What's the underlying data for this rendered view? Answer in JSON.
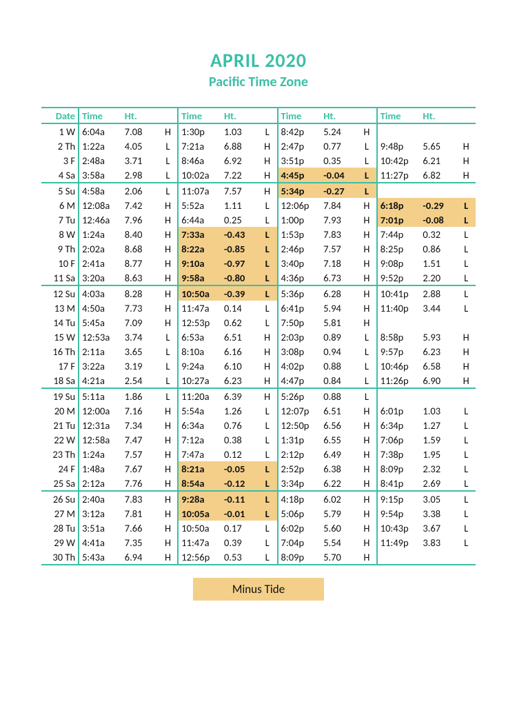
{
  "colors": {
    "accent": "#3bbfa5",
    "highlight": "#f3cf8a",
    "text": "#111111",
    "background": "#ffffff"
  },
  "title": "APRIL 2020",
  "subtitle": "Pacific Time Zone",
  "legend_label": "Minus Tide",
  "headers": {
    "date": "Date",
    "time": "Time",
    "ht": "Ht."
  },
  "week_breaks_after": [
    4,
    11,
    18,
    25
  ],
  "rows": [
    {
      "d": 1,
      "w": "W",
      "t": [
        [
          "6:04a",
          "7.08",
          "H"
        ],
        [
          "1:30p",
          "1.03",
          "L"
        ],
        [
          "8:42p",
          "5.24",
          "H"
        ],
        [
          "",
          "",
          ""
        ]
      ]
    },
    {
      "d": 2,
      "w": "Th",
      "t": [
        [
          "1:22a",
          "4.05",
          "L"
        ],
        [
          "7:21a",
          "6.88",
          "H"
        ],
        [
          "2:47p",
          "0.77",
          "L"
        ],
        [
          "9:48p",
          "5.65",
          "H"
        ]
      ]
    },
    {
      "d": 3,
      "w": "F",
      "t": [
        [
          "2:48a",
          "3.71",
          "L"
        ],
        [
          "8:46a",
          "6.92",
          "H"
        ],
        [
          "3:51p",
          "0.35",
          "L"
        ],
        [
          "10:42p",
          "6.21",
          "H"
        ]
      ]
    },
    {
      "d": 4,
      "w": "Sa",
      "t": [
        [
          "3:58a",
          "2.98",
          "L"
        ],
        [
          "10:02a",
          "7.22",
          "H"
        ],
        [
          "4:45p",
          "-0.04",
          "L",
          true
        ],
        [
          "11:27p",
          "6.82",
          "H"
        ]
      ]
    },
    {
      "d": 5,
      "w": "Su",
      "t": [
        [
          "4:58a",
          "2.06",
          "L"
        ],
        [
          "11:07a",
          "7.57",
          "H"
        ],
        [
          "5:34p",
          "-0.27",
          "L",
          true
        ],
        [
          "",
          "",
          ""
        ]
      ]
    },
    {
      "d": 6,
      "w": "M",
      "t": [
        [
          "12:08a",
          "7.42",
          "H"
        ],
        [
          "5:52a",
          "1.11",
          "L"
        ],
        [
          "12:06p",
          "7.84",
          "H"
        ],
        [
          "6:18p",
          "-0.29",
          "L",
          true
        ]
      ]
    },
    {
      "d": 7,
      "w": "Tu",
      "t": [
        [
          "12:46a",
          "7.96",
          "H"
        ],
        [
          "6:44a",
          "0.25",
          "L"
        ],
        [
          "1:00p",
          "7.93",
          "H"
        ],
        [
          "7:01p",
          "-0.08",
          "L",
          true
        ]
      ]
    },
    {
      "d": 8,
      "w": "W",
      "t": [
        [
          "1:24a",
          "8.40",
          "H"
        ],
        [
          "7:33a",
          "-0.43",
          "L",
          true
        ],
        [
          "1:53p",
          "7.83",
          "H"
        ],
        [
          "7:44p",
          "0.32",
          "L"
        ]
      ]
    },
    {
      "d": 9,
      "w": "Th",
      "t": [
        [
          "2:02a",
          "8.68",
          "H"
        ],
        [
          "8:22a",
          "-0.85",
          "L",
          true
        ],
        [
          "2:46p",
          "7.57",
          "H"
        ],
        [
          "8:25p",
          "0.86",
          "L"
        ]
      ]
    },
    {
      "d": 10,
      "w": "F",
      "t": [
        [
          "2:41a",
          "8.77",
          "H"
        ],
        [
          "9:10a",
          "-0.97",
          "L",
          true
        ],
        [
          "3:40p",
          "7.18",
          "H"
        ],
        [
          "9:08p",
          "1.51",
          "L"
        ]
      ]
    },
    {
      "d": 11,
      "w": "Sa",
      "t": [
        [
          "3:20a",
          "8.63",
          "H"
        ],
        [
          "9:58a",
          "-0.80",
          "L",
          true
        ],
        [
          "4:36p",
          "6.73",
          "H"
        ],
        [
          "9:52p",
          "2.20",
          "L"
        ]
      ]
    },
    {
      "d": 12,
      "w": "Su",
      "t": [
        [
          "4:03a",
          "8.28",
          "H"
        ],
        [
          "10:50a",
          "-0.39",
          "L",
          true
        ],
        [
          "5:36p",
          "6.28",
          "H"
        ],
        [
          "10:41p",
          "2.88",
          "L"
        ]
      ]
    },
    {
      "d": 13,
      "w": "M",
      "t": [
        [
          "4:50a",
          "7.73",
          "H"
        ],
        [
          "11:47a",
          "0.14",
          "L"
        ],
        [
          "6:41p",
          "5.94",
          "H"
        ],
        [
          "11:40p",
          "3.44",
          "L"
        ]
      ]
    },
    {
      "d": 14,
      "w": "Tu",
      "t": [
        [
          "5:45a",
          "7.09",
          "H"
        ],
        [
          "12:53p",
          "0.62",
          "L"
        ],
        [
          "7:50p",
          "5.81",
          "H"
        ],
        [
          "",
          "",
          ""
        ]
      ]
    },
    {
      "d": 15,
      "w": "W",
      "t": [
        [
          "12:53a",
          "3.74",
          "L"
        ],
        [
          "6:53a",
          "6.51",
          "H"
        ],
        [
          "2:03p",
          "0.89",
          "L"
        ],
        [
          "8:58p",
          "5.93",
          "H"
        ]
      ]
    },
    {
      "d": 16,
      "w": "Th",
      "t": [
        [
          "2:11a",
          "3.65",
          "L"
        ],
        [
          "8:10a",
          "6.16",
          "H"
        ],
        [
          "3:08p",
          "0.94",
          "L"
        ],
        [
          "9:57p",
          "6.23",
          "H"
        ]
      ]
    },
    {
      "d": 17,
      "w": "F",
      "t": [
        [
          "3:22a",
          "3.19",
          "L"
        ],
        [
          "9:24a",
          "6.10",
          "H"
        ],
        [
          "4:02p",
          "0.88",
          "L"
        ],
        [
          "10:46p",
          "6.58",
          "H"
        ]
      ]
    },
    {
      "d": 18,
      "w": "Sa",
      "t": [
        [
          "4:21a",
          "2.54",
          "L"
        ],
        [
          "10:27a",
          "6.23",
          "H"
        ],
        [
          "4:47p",
          "0.84",
          "L"
        ],
        [
          "11:26p",
          "6.90",
          "H"
        ]
      ]
    },
    {
      "d": 19,
      "w": "Su",
      "t": [
        [
          "5:11a",
          "1.86",
          "L"
        ],
        [
          "11:20a",
          "6.39",
          "H"
        ],
        [
          "5:26p",
          "0.88",
          "L"
        ],
        [
          "",
          "",
          ""
        ]
      ]
    },
    {
      "d": 20,
      "w": "M",
      "t": [
        [
          "12:00a",
          "7.16",
          "H"
        ],
        [
          "5:54a",
          "1.26",
          "L"
        ],
        [
          "12:07p",
          "6.51",
          "H"
        ],
        [
          "6:01p",
          "1.03",
          "L"
        ]
      ]
    },
    {
      "d": 21,
      "w": "Tu",
      "t": [
        [
          "12:31a",
          "7.34",
          "H"
        ],
        [
          "6:34a",
          "0.76",
          "L"
        ],
        [
          "12:50p",
          "6.56",
          "H"
        ],
        [
          "6:34p",
          "1.27",
          "L"
        ]
      ]
    },
    {
      "d": 22,
      "w": "W",
      "t": [
        [
          "12:58a",
          "7.47",
          "H"
        ],
        [
          "7:12a",
          "0.38",
          "L"
        ],
        [
          "1:31p",
          "6.55",
          "H"
        ],
        [
          "7:06p",
          "1.59",
          "L"
        ]
      ]
    },
    {
      "d": 23,
      "w": "Th",
      "t": [
        [
          "1:24a",
          "7.57",
          "H"
        ],
        [
          "7:47a",
          "0.12",
          "L"
        ],
        [
          "2:12p",
          "6.49",
          "H"
        ],
        [
          "7:38p",
          "1.95",
          "L"
        ]
      ]
    },
    {
      "d": 24,
      "w": "F",
      "t": [
        [
          "1:48a",
          "7.67",
          "H"
        ],
        [
          "8:21a",
          "-0.05",
          "L",
          true
        ],
        [
          "2:52p",
          "6.38",
          "H"
        ],
        [
          "8:09p",
          "2.32",
          "L"
        ]
      ]
    },
    {
      "d": 25,
      "w": "Sa",
      "t": [
        [
          "2:12a",
          "7.76",
          "H"
        ],
        [
          "8:54a",
          "-0.12",
          "L",
          true
        ],
        [
          "3:34p",
          "6.22",
          "H"
        ],
        [
          "8:41p",
          "2.69",
          "L"
        ]
      ]
    },
    {
      "d": 26,
      "w": "Su",
      "t": [
        [
          "2:40a",
          "7.83",
          "H"
        ],
        [
          "9:28a",
          "-0.11",
          "L",
          true
        ],
        [
          "4:18p",
          "6.02",
          "H"
        ],
        [
          "9:15p",
          "3.05",
          "L"
        ]
      ]
    },
    {
      "d": 27,
      "w": "M",
      "t": [
        [
          "3:12a",
          "7.81",
          "H"
        ],
        [
          "10:05a",
          "-0.01",
          "L",
          true
        ],
        [
          "5:06p",
          "5.79",
          "H"
        ],
        [
          "9:54p",
          "3.38",
          "L"
        ]
      ]
    },
    {
      "d": 28,
      "w": "Tu",
      "t": [
        [
          "3:51a",
          "7.66",
          "H"
        ],
        [
          "10:50a",
          "0.17",
          "L"
        ],
        [
          "6:02p",
          "5.60",
          "H"
        ],
        [
          "10:43p",
          "3.67",
          "L"
        ]
      ]
    },
    {
      "d": 29,
      "w": "W",
      "t": [
        [
          "4:41a",
          "7.35",
          "H"
        ],
        [
          "11:47a",
          "0.39",
          "L"
        ],
        [
          "7:04p",
          "5.54",
          "H"
        ],
        [
          "11:49p",
          "3.83",
          "L"
        ]
      ]
    },
    {
      "d": 30,
      "w": "Th",
      "t": [
        [
          "5:43a",
          "6.94",
          "H"
        ],
        [
          "12:56p",
          "0.53",
          "L"
        ],
        [
          "8:09p",
          "5.70",
          "H"
        ],
        [
          "",
          "",
          ""
        ]
      ]
    }
  ]
}
